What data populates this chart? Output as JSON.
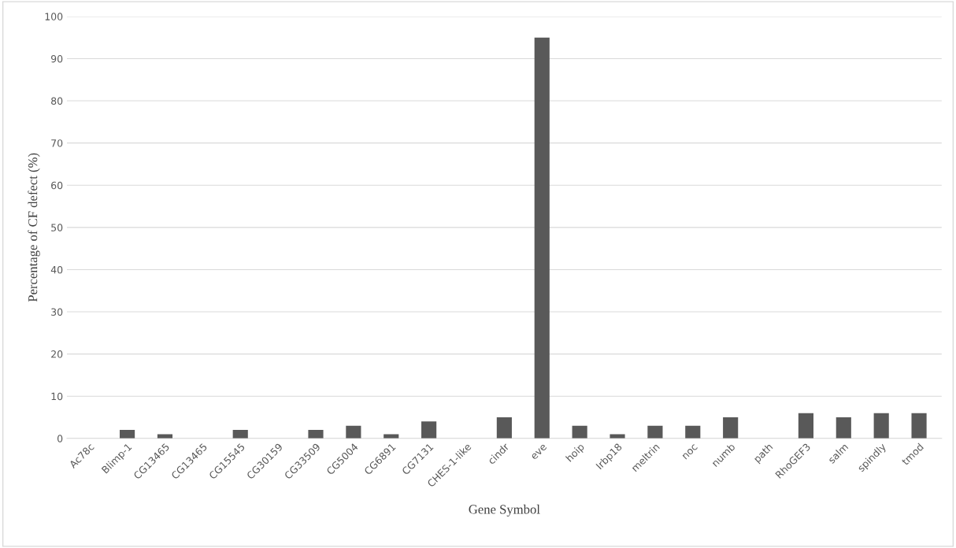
{
  "chart_data": {
    "type": "bar",
    "xlabel": "Gene Symbol",
    "ylabel": "Percentage of CF defect (%)",
    "categories": [
      "Ac78c",
      "Blimp-1",
      "CG13465",
      "CG13465",
      "CG15545",
      "CG30159",
      "CG33509",
      "CG5004",
      "CG6891",
      "CG7131",
      "CHES-1-like",
      "cindr",
      "eve",
      "hoip",
      "Irbp18",
      "meltrin",
      "noc",
      "numb",
      "path",
      "RhoGEF3",
      "salm",
      "spindly",
      "tmod"
    ],
    "values": [
      0,
      2,
      1,
      0,
      2,
      0,
      2,
      3,
      1,
      4,
      0,
      5,
      95,
      3,
      1,
      3,
      3,
      5,
      0,
      6,
      5,
      6,
      6
    ],
    "color": "#595959",
    "ylim": [
      0,
      100
    ],
    "yticks": [
      0,
      10,
      20,
      30,
      40,
      50,
      60,
      70,
      80,
      90,
      100
    ],
    "grid": "y",
    "legend": false
  }
}
